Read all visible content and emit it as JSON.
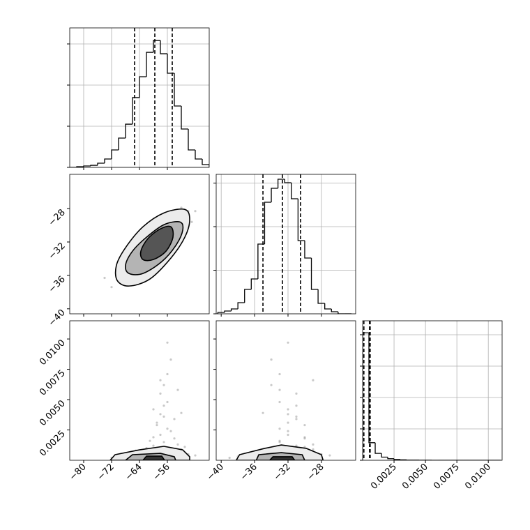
{
  "chart_data": [
    {
      "type": "histogram",
      "bins": [
        -84,
        -82,
        -80,
        -78,
        -76,
        -74,
        -72,
        -70,
        -68,
        -66,
        -64,
        -62,
        -60,
        -58,
        -56,
        -54,
        -52,
        -50,
        -48,
        -46,
        -44
      ],
      "values": [
        0,
        8,
        17,
        25,
        51,
        102,
        212,
        356,
        525,
        848,
        1102,
        1398,
        1542,
        1381,
        1144,
        746,
        466,
        212,
        102,
        34
      ],
      "quantiles": [
        -65.4,
        -59.6,
        -54.6
      ],
      "color": "#000000",
      "grid": true,
      "show_xticklabels": false,
      "show_yticklabels": false,
      "xlim": [
        -84,
        -44
      ],
      "ylim": [
        0,
        1695
      ],
      "xticks": [
        {
          "value": -80,
          "label": "−80"
        },
        {
          "value": -72,
          "label": "−72"
        },
        {
          "value": -64,
          "label": "−64"
        },
        {
          "value": -56,
          "label": "−56"
        }
      ],
      "yticks": [
        0,
        500,
        1000,
        1500
      ]
    },
    {
      "type": "scatter",
      "x": [
        -59,
        -55,
        -63,
        -52,
        -66,
        -60,
        -57,
        -61,
        -50,
        -68,
        -58,
        -62,
        -54,
        -64,
        -56,
        -70,
        -53,
        -59,
        -48,
        -65,
        -61,
        -57,
        -72,
        -51,
        -60,
        -63,
        -55,
        -58,
        -67,
        -62,
        -49,
        -64,
        -56,
        -60,
        -74,
        -53,
        -58,
        -66,
        -52,
        -61,
        -57,
        -69,
        -55,
        -63,
        -59,
        -50,
        -65,
        -58,
        -62,
        -54
      ],
      "y": [
        -31.2,
        -31.3,
        -32.2,
        -29.3,
        -34.9,
        -30.8,
        -32.6,
        -33.6,
        -28.3,
        -34.1,
        -31.7,
        -30.9,
        -32.0,
        -35.3,
        -30.6,
        -36.3,
        -28.8,
        -34.2,
        -28.3,
        -32.7,
        -30.1,
        -29.6,
        -37.4,
        -30.8,
        -34.9,
        -33.6,
        -28.4,
        -32.6,
        -34.1,
        -35.2,
        -29.6,
        -31.8,
        -32.7,
        -31.4,
        -36.3,
        -30.5,
        -30.5,
        -32.3,
        -27.9,
        -32.8,
        -30.7,
        -35.0,
        -32.9,
        -34.8,
        -30.1,
        -29.7,
        -35.0,
        -33.4,
        -32.4,
        -29.6
      ],
      "point_color": "#888888",
      "contours": [
        {
          "x": [
            -51,
            -49.6,
            -51,
            -55,
            -61,
            -67,
            -70.4,
            -70.6,
            -68,
            -63,
            -57
          ],
          "y": [
            -28.1,
            -29.35,
            -31.43,
            -33.93,
            -36.43,
            -37.27,
            -36.6,
            -34.77,
            -32.68,
            -30.18,
            -28.52
          ],
          "color": "#ececec"
        },
        {
          "x": [
            -52.4,
            -51.6,
            -53.6,
            -57.6,
            -63,
            -67,
            -68,
            -66,
            -62,
            -57
          ],
          "y": [
            -29.6,
            -30.6,
            -32.43,
            -34.35,
            -35.77,
            -35.77,
            -34.77,
            -33.1,
            -31.43,
            -29.93
          ],
          "color": "#b4b4b4"
        },
        {
          "x": [
            -55,
            -54.4,
            -56.4,
            -60,
            -63,
            -63.6,
            -61.6,
            -58
          ],
          "y": [
            -30.18,
            -31.43,
            -33.1,
            -34.1,
            -34.1,
            -33.1,
            -31.6,
            -30.43
          ],
          "color": "#555555"
        }
      ],
      "grid": false,
      "show_xticklabels": false,
      "show_yticklabels": true,
      "xlim": [
        -84,
        -44
      ],
      "ylim": [
        -40.6,
        -23.9
      ],
      "xticks": [
        {
          "value": -80,
          "label": "−80"
        },
        {
          "value": -72,
          "label": "−72"
        },
        {
          "value": -64,
          "label": "−64"
        },
        {
          "value": -56,
          "label": "−56"
        }
      ],
      "yticks": [
        {
          "value": -40,
          "label": "−40"
        },
        {
          "value": -36,
          "label": "−36"
        },
        {
          "value": -32,
          "label": "−32"
        },
        {
          "value": -28,
          "label": "−28"
        }
      ]
    },
    {
      "type": "histogram",
      "bins": [
        -40.4,
        -39.6,
        -38.8,
        -38,
        -37.2,
        -36.4,
        -35.6,
        -34.8,
        -34,
        -33.2,
        -32.4,
        -31.6,
        -30.8,
        -30,
        -29.2,
        -28.4,
        -27.6,
        -26.8,
        -26,
        -25.2,
        -24.4
      ],
      "values": [
        16,
        32,
        56,
        128,
        280,
        400,
        800,
        1280,
        1440,
        1544,
        1504,
        1320,
        840,
        640,
        280,
        120,
        56,
        24,
        0,
        0
      ],
      "quantiles": [
        -35.0,
        -32.67,
        -30.5
      ],
      "color": "#000000",
      "grid": true,
      "show_xticklabels": false,
      "show_yticklabels": false,
      "xlim": [
        -40.6,
        -23.9
      ],
      "ylim": [
        0,
        1600
      ],
      "xticks": [
        {
          "value": -40,
          "label": "−40"
        },
        {
          "value": -36,
          "label": "−36"
        },
        {
          "value": -32,
          "label": "−32"
        },
        {
          "value": -28,
          "label": "−28"
        }
      ],
      "yticks": [
        0,
        500,
        1000,
        1500
      ]
    },
    {
      "type": "scatter",
      "x": [
        -59,
        -55,
        -63,
        -52,
        -66,
        -60,
        -57,
        -61,
        -50,
        -68,
        -58,
        -62,
        -54,
        -64,
        -56,
        -70,
        -53,
        -59,
        -48,
        -65,
        -61,
        -57,
        -72,
        -51,
        -60,
        -56,
        -58,
        -55,
        -57,
        -59,
        -54,
        -56,
        -58,
        -60,
        -55,
        -57,
        -53,
        -56,
        -58,
        -52
      ],
      "y": [
        0.0003,
        0.0006,
        0.0002,
        0.0009,
        0.0004,
        0.0012,
        0.0015,
        0.0007,
        0.0005,
        0.0002,
        0.0021,
        0.001,
        0.0018,
        0.0006,
        0.0026,
        0.0003,
        0.0013,
        0.0031,
        0.0004,
        0.0008,
        0.0016,
        0.0036,
        0.0002,
        0.0011,
        0.0042,
        0.0048,
        0.0055,
        0.0024,
        0.0062,
        0.0029,
        0.0034,
        0.0071,
        0.0038,
        0.0019,
        0.0083,
        0.0045,
        0.0058,
        0.0097,
        0.0066,
        0.0039
      ],
      "point_color": "#888888",
      "contours": [
        {
          "x": [
            -72.4,
            -71,
            -64,
            -57,
            -51.6,
            -49.6,
            -49.6
          ],
          "y": [
            0,
            0.00046,
            0.00086,
            0.00115,
            0.00086,
            0.00029,
            0
          ],
          "color": "#ececec"
        },
        {
          "x": [
            -68,
            -66,
            -58,
            -54,
            -53.6
          ],
          "y": [
            0,
            0.00046,
            0.00057,
            0.00029,
            0
          ],
          "color": "#b4b4b4"
        },
        {
          "x": [
            -63,
            -62,
            -57.6,
            -56.8
          ],
          "y": [
            0,
            0.00034,
            0.00034,
            0
          ],
          "color": "#333333"
        }
      ],
      "grid": false,
      "show_xticklabels": true,
      "show_yticklabels": true,
      "xlim": [
        -84,
        -44
      ],
      "ylim": [
        0,
        0.0115
      ],
      "xticks": [
        {
          "value": -80,
          "label": "−80"
        },
        {
          "value": -72,
          "label": "−72"
        },
        {
          "value": -64,
          "label": "−64"
        },
        {
          "value": -56,
          "label": "−56"
        }
      ],
      "yticks": [
        0.0025,
        {
          "value": 0.005,
          "label": "0.0050"
        },
        0.0075,
        {
          "value": 0.01,
          "label": "0.0100"
        }
      ]
    },
    {
      "type": "scatter",
      "x": [
        -32,
        -30,
        -34,
        -29,
        -35,
        -31,
        -33,
        -36,
        -28,
        -37,
        -32,
        -31,
        -30,
        -34,
        -33,
        -38,
        -29,
        -32,
        -27,
        -35,
        -33,
        -31,
        -39,
        -30,
        -32,
        -33,
        -31,
        -32,
        -34,
        -30,
        -31,
        -33,
        -32,
        -30,
        -34,
        -31,
        -33,
        -32,
        -29,
        -35
      ],
      "y": [
        0.0003,
        0.0006,
        0.0002,
        0.0009,
        0.0004,
        0.0012,
        0.0015,
        0.0007,
        0.0005,
        0.0002,
        0.0021,
        0.001,
        0.0018,
        0.0006,
        0.0026,
        0.0003,
        0.0013,
        0.0031,
        0.0004,
        0.0008,
        0.0016,
        0.0036,
        0.0002,
        0.0011,
        0.0042,
        0.0048,
        0.0055,
        0.0024,
        0.0062,
        0.0029,
        0.0034,
        0.0071,
        0.0038,
        0.0019,
        0.0083,
        0.0045,
        0.0058,
        0.0097,
        0.0066,
        0.0039
      ],
      "point_color": "#888888",
      "contours": [
        {
          "x": [
            -38.2,
            -37.8,
            -34.8,
            -32.8,
            -29.8,
            -28,
            -27.8
          ],
          "y": [
            0,
            0.00046,
            0.00098,
            0.00126,
            0.00098,
            0.00046,
            0
          ],
          "color": "#ececec"
        },
        {
          "x": [
            -35.8,
            -35.5,
            -32.8,
            -30.3,
            -30
          ],
          "y": [
            0,
            0.00046,
            0.00063,
            0.00046,
            0
          ],
          "color": "#b4b4b4"
        },
        {
          "x": [
            -34.2,
            -33.8,
            -31.5,
            -31.2
          ],
          "y": [
            0,
            0.00029,
            0.00029,
            0
          ],
          "color": "#333333"
        }
      ],
      "grid": false,
      "show_xticklabels": true,
      "show_yticklabels": false,
      "xlim": [
        -40.6,
        -23.9
      ],
      "ylim": [
        0,
        0.0115
      ],
      "xticks": [
        {
          "value": -40,
          "label": "−40"
        },
        {
          "value": -36,
          "label": "−36"
        },
        {
          "value": -32,
          "label": "−32"
        },
        {
          "value": -28,
          "label": "−28"
        }
      ],
      "yticks": [
        0.0025,
        0.005,
        0.0075,
        0.01
      ]
    },
    {
      "type": "histogram",
      "bins": [
        0,
        0.0005,
        0.001,
        0.0015,
        0.002,
        0.0025,
        0.003,
        0.0035,
        0.004,
        0.0045,
        0.005,
        0.0055,
        0.006,
        0.0065,
        0.007,
        0.0075,
        0.008,
        0.0085,
        0.009,
        0.0095,
        0.01,
        0.0105,
        0.011
      ],
      "values": [
        2030,
        280,
        110,
        50,
        25,
        12,
        6,
        3,
        2,
        1,
        1,
        0,
        0,
        0,
        0,
        0,
        0,
        0,
        0,
        0,
        0,
        0
      ],
      "quantiles": [
        0.0001,
        0.00055,
        0.0006
      ],
      "color": "#000000",
      "grid": true,
      "show_xticklabels": true,
      "show_yticklabels": false,
      "xlim": [
        0,
        0.0111
      ],
      "ylim": [
        0,
        2222
      ],
      "xticks": [
        0.0025,
        {
          "value": 0.005,
          "label": "0.0050"
        },
        0.0075,
        {
          "value": 0.01,
          "label": "0.0100"
        }
      ],
      "yticks": [
        0,
        500,
        1000,
        1500,
        2000
      ]
    }
  ]
}
